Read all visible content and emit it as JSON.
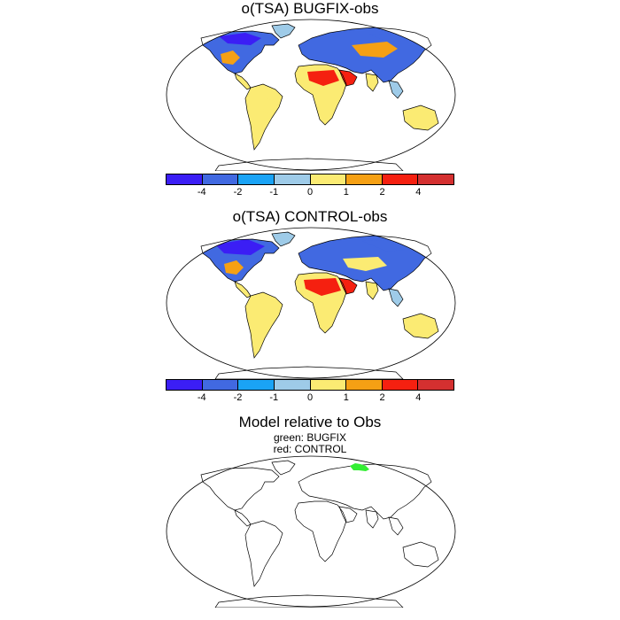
{
  "panels": [
    {
      "title": "o(TSA) BUGFIX-obs"
    },
    {
      "title": "o(TSA) CONTROL-obs"
    },
    {
      "title": "Model relative to Obs",
      "subtitle_line1": "green: BUGFIX",
      "subtitle_line2": "red: CONTROL"
    }
  ],
  "colorbar": {
    "colors": [
      "#3b1ef5",
      "#4169e1",
      "#1aa3f5",
      "#9ecbe8",
      "#fbeb73",
      "#f5a014",
      "#f52010",
      "#d43030"
    ],
    "tick_labels": [
      "-4",
      "-2",
      "-1",
      "0",
      "1",
      "2",
      "4"
    ]
  },
  "relative_colors": {
    "bugfix": "#33ee33",
    "control": "#ee3333"
  }
}
